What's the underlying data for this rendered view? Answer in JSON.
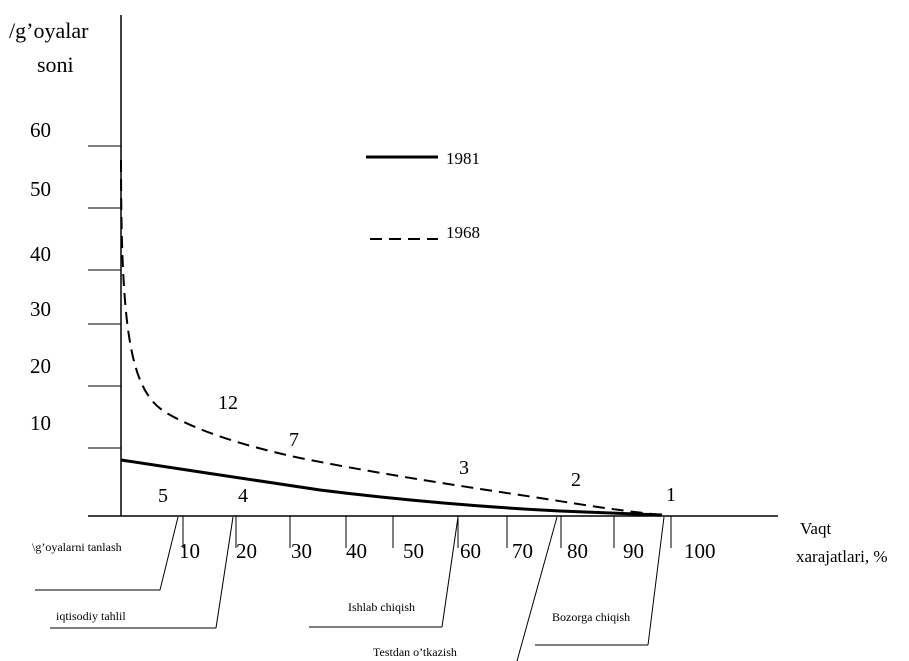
{
  "chart_data": {
    "type": "line",
    "ylabel": [
      "/g’oyalar",
      "soni"
    ],
    "xlabel": [
      "Vaqt",
      "xarajatlari, %"
    ],
    "x_ticks": [
      "10",
      "20",
      "30",
      "40",
      "50",
      "60",
      "70",
      "80",
      "90",
      "100"
    ],
    "y_ticks": [
      "10",
      "20",
      "30",
      "40",
      "50",
      "60"
    ],
    "legend": [
      "1981",
      "1968"
    ],
    "series": [
      {
        "name": "1981",
        "style": "solid",
        "x": [
          0,
          10,
          20,
          30,
          40,
          50,
          60,
          70,
          80,
          90,
          96
        ],
        "y": [
          8.5,
          7.0,
          6.0,
          4.8,
          3.6,
          2.6,
          1.8,
          1.2,
          0.6,
          0.2,
          0
        ]
      },
      {
        "name": "1968",
        "style": "dashed",
        "x": [
          0,
          1,
          3,
          5,
          8,
          12,
          18,
          25,
          35,
          50,
          60,
          70,
          80,
          90,
          96
        ],
        "y": [
          56,
          36,
          24,
          19,
          15.5,
          13.5,
          12.0,
          10.5,
          8.5,
          6.0,
          4.5,
          3.0,
          1.5,
          0.5,
          0
        ]
      }
    ],
    "curve_labels": [
      "5",
      "4",
      "12",
      "7",
      "3",
      "2",
      "1"
    ],
    "stages": [
      "\\g’oyalarni tanlash",
      "iqtisodiy tahlil",
      "Ishlab chiqish",
      "Testdan o’tkazish",
      "Bozorga chiqish"
    ]
  }
}
